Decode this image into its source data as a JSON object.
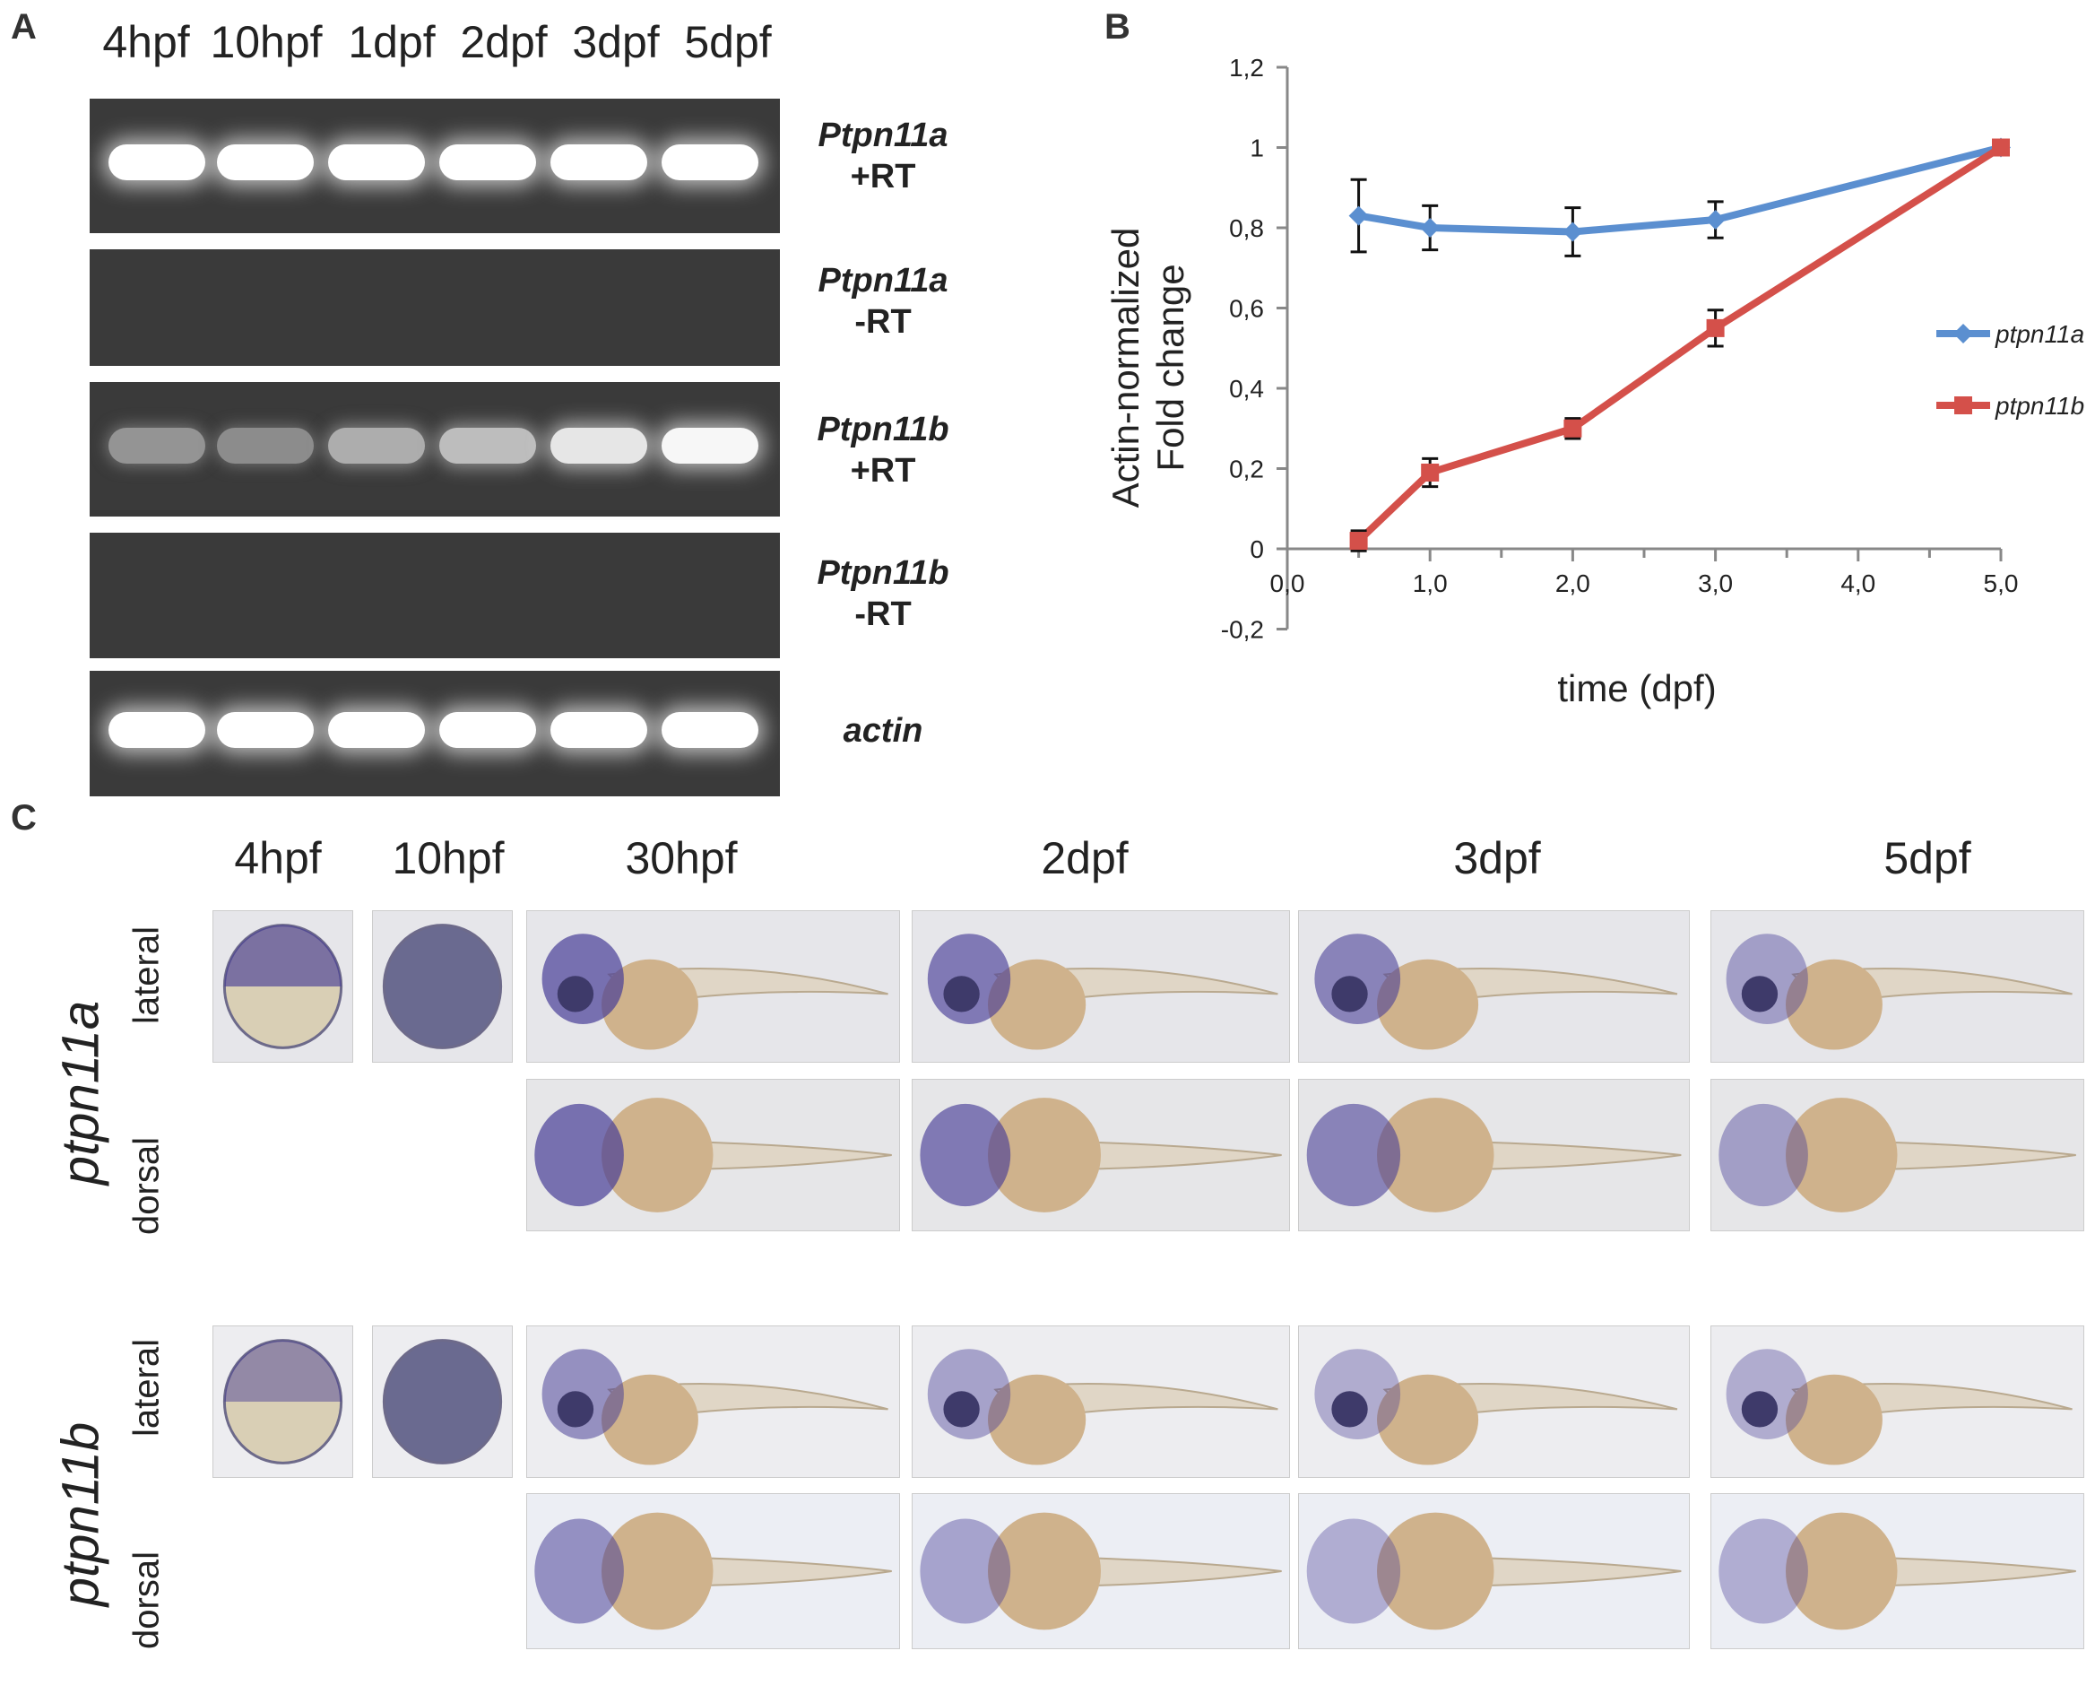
{
  "panel_labels": {
    "a": "A",
    "b": "B",
    "c": "C"
  },
  "gel": {
    "lanes": [
      "4hpf",
      "10hpf",
      "1dpf",
      "2dpf",
      "3dpf",
      "5dpf"
    ],
    "rows": [
      {
        "gene": "Ptpn11a",
        "condition": "+RT",
        "band_intensity": [
          1,
          1,
          1,
          1,
          1,
          1
        ]
      },
      {
        "gene": "Ptpn11a",
        "condition": "-RT",
        "band_intensity": [
          0,
          0,
          0,
          0,
          0,
          0
        ]
      },
      {
        "gene": "Ptpn11b",
        "condition": "+RT",
        "band_intensity": [
          0.35,
          0.3,
          0.5,
          0.6,
          0.85,
          0.95
        ]
      },
      {
        "gene": "Ptpn11b",
        "condition": "-RT",
        "band_intensity": [
          0,
          0,
          0,
          0,
          0,
          0
        ]
      },
      {
        "gene": "actin",
        "condition": "",
        "band_intensity": [
          1,
          1,
          1,
          1,
          1,
          1
        ]
      }
    ]
  },
  "chart_data": {
    "type": "line",
    "xlabel": "time (dpf)",
    "ylabel_line1": "Actin-normalized",
    "ylabel_line2": "Fold change",
    "xlim": [
      0,
      5
    ],
    "ylim": [
      -0.2,
      1.2
    ],
    "xticks": [
      "0,0",
      "1,0",
      "2,0",
      "3,0",
      "4,0",
      "5,0"
    ],
    "yticks": [
      "-0,2",
      "0",
      "0,2",
      "0,4",
      "0,6",
      "0,8",
      "1",
      "1,2"
    ],
    "legend_position": "right",
    "series": [
      {
        "name": "ptpn11a",
        "color": "#5b8fd0",
        "marker": "diamond",
        "x": [
          0.5,
          1,
          2,
          3,
          5
        ],
        "y": [
          0.83,
          0.8,
          0.79,
          0.82,
          1.0
        ],
        "err": [
          0.09,
          0.055,
          0.06,
          0.045,
          0
        ]
      },
      {
        "name": "ptpn11b",
        "color": "#d4504a",
        "marker": "square",
        "x": [
          0.5,
          1,
          2,
          3,
          5
        ],
        "y": [
          0.02,
          0.19,
          0.3,
          0.55,
          1.0
        ],
        "err": [
          0.025,
          0.035,
          0.025,
          0.045,
          0
        ]
      }
    ]
  },
  "ish": {
    "stages": [
      "4hpf",
      "10hpf",
      "30hpf",
      "2dpf",
      "3dpf",
      "5dpf"
    ],
    "views": [
      "lateral",
      "dorsal"
    ],
    "genes": [
      "ptpn11a",
      "ptpn11b"
    ]
  }
}
